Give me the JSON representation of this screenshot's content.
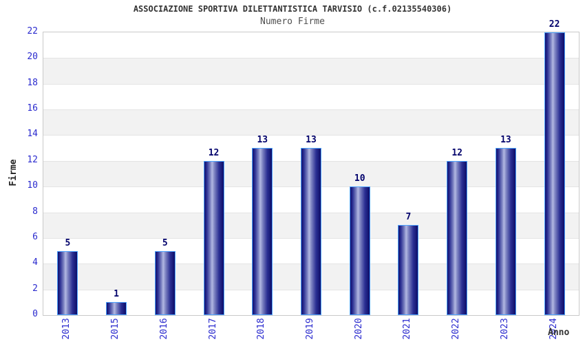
{
  "chart_data": {
    "type": "bar",
    "title": "ASSOCIAZIONE SPORTIVA DILETTANTISTICA TARVISIO (c.f.02135540306)",
    "subtitle": "Numero Firme",
    "xlabel": "Anno",
    "ylabel": "Firme",
    "categories": [
      "2013",
      "2015",
      "2016",
      "2017",
      "2018",
      "2019",
      "2020",
      "2021",
      "2022",
      "2023",
      "2024"
    ],
    "values": [
      5,
      1,
      5,
      12,
      13,
      13,
      10,
      7,
      12,
      13,
      22
    ],
    "ylim": [
      0,
      22
    ],
    "ytick_step": 2,
    "grid": true,
    "legend": false,
    "band_pattern": "alternating horizontal bands, white top band",
    "colors": {
      "bar_edge_dark": "#10106e",
      "bar_dark2": "#2b2f93",
      "bar_mid": "#7a80c0",
      "bar_light_center": "#b2b8e2",
      "bar_right_dark": "#0d0d68",
      "bar_border": "#4da3ff",
      "value_label": "#00006b",
      "tick_label": "#2a2ace",
      "band_gray": "#f2f2f2",
      "band_white": "#ffffff",
      "grid_line": "#e4e4e4",
      "plot_border": "#c9c9c9",
      "title_color": "#333333",
      "subtitle_color": "#4d4d4d",
      "axis_label_color": "#222222"
    }
  }
}
